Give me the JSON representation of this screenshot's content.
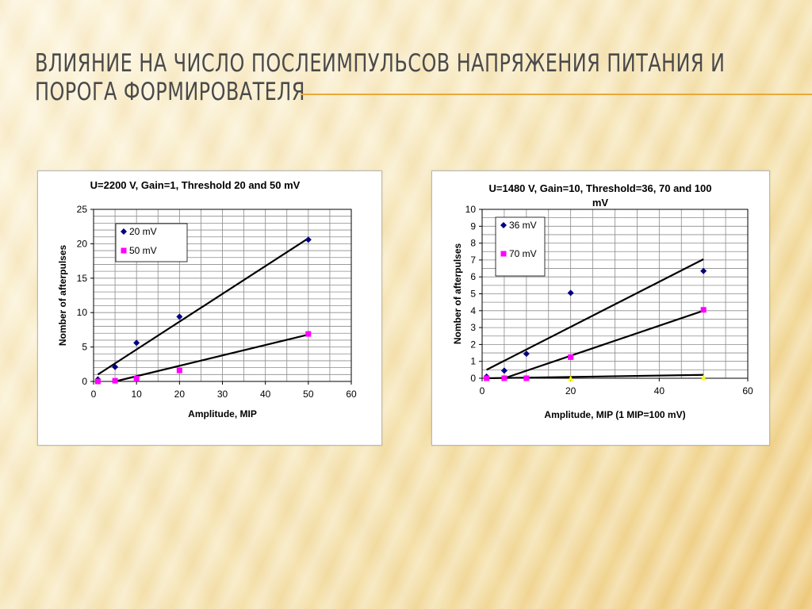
{
  "slide": {
    "title_line1": "Влияние на число послеимпульсов напряжения питания и",
    "title_line2": "порога формирователя",
    "accent_color": "#e8a93a"
  },
  "chart_data": [
    {
      "type": "scatter",
      "title": "U=2200 V, Gain=1, Threshold 20 and 50 mV",
      "xlabel": "Amplitude, MIP",
      "ylabel": "Nomber of afterpulses",
      "xlim": [
        0,
        60
      ],
      "ylim": [
        0,
        25
      ],
      "xticks": [
        0,
        10,
        20,
        30,
        40,
        50,
        60
      ],
      "yticks": [
        0,
        5,
        10,
        15,
        20,
        25
      ],
      "grid": true,
      "legend_position": "top-left",
      "series": [
        {
          "name": "20 mV",
          "color": "#000080",
          "marker": "diamond",
          "x": [
            1,
            5,
            10,
            20,
            50
          ],
          "y": [
            0.3,
            2.1,
            5.6,
            9.4,
            20.6
          ]
        },
        {
          "name": "50 mV",
          "color": "#ff00ff",
          "marker": "square",
          "x": [
            1,
            5,
            10,
            20,
            50
          ],
          "y": [
            0.0,
            0.1,
            0.4,
            1.6,
            6.9
          ]
        }
      ],
      "trendlines": [
        {
          "x": [
            1,
            50
          ],
          "y": [
            1.0,
            20.8
          ]
        },
        {
          "x": [
            5,
            50
          ],
          "y": [
            0.0,
            6.8
          ]
        }
      ]
    },
    {
      "type": "scatter",
      "title": "U=1480 V, Gain=10, Threshold=36, 70 and 100 mV",
      "xlabel": "Amplitude, MIP (1 MIP=100 mV)",
      "ylabel": "Nomber of afterpulses",
      "xlim": [
        0,
        60
      ],
      "ylim": [
        0,
        10
      ],
      "xticks": [
        0,
        20,
        40,
        60
      ],
      "yticks": [
        0,
        1,
        2,
        3,
        4,
        5,
        6,
        7,
        8,
        9,
        10
      ],
      "grid": true,
      "legend_position": "top-left",
      "series": [
        {
          "name": "36 mV",
          "color": "#000080",
          "marker": "diamond",
          "x": [
            1,
            5,
            10,
            20,
            50
          ],
          "y": [
            0.1,
            0.45,
            1.45,
            5.05,
            6.35
          ]
        },
        {
          "name": "70 mV",
          "color": "#ff00ff",
          "marker": "square",
          "x": [
            1,
            5,
            10,
            20,
            50
          ],
          "y": [
            0.0,
            0.0,
            0.0,
            1.25,
            4.05
          ]
        },
        {
          "name": "",
          "color": "#ffff00",
          "marker": "triangle",
          "x": [
            20,
            50
          ],
          "y": [
            0.0,
            0.05
          ]
        }
      ],
      "trendlines": [
        {
          "x": [
            1,
            50
          ],
          "y": [
            0.5,
            7.05
          ]
        },
        {
          "x": [
            5,
            50
          ],
          "y": [
            0.0,
            4.0
          ]
        },
        {
          "x": [
            1,
            50
          ],
          "y": [
            0.0,
            0.2
          ]
        }
      ]
    }
  ]
}
